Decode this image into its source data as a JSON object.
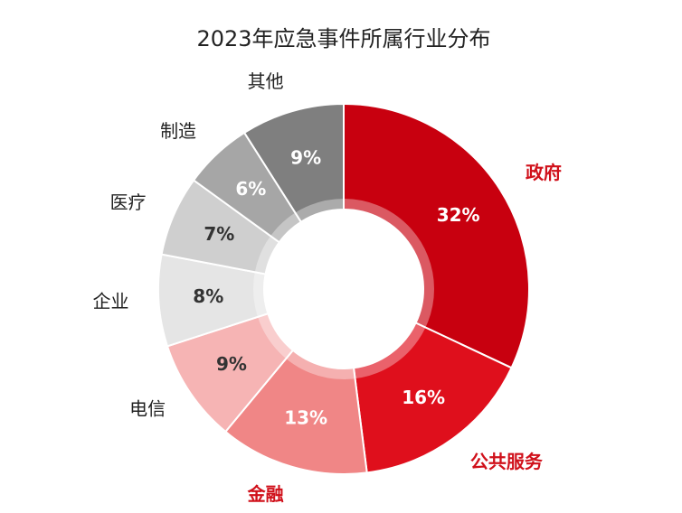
{
  "chart_data": {
    "type": "donut",
    "title": "2023年应急事件所属行业分布",
    "categories": [
      "政府",
      "公共服务",
      "金融",
      "电信",
      "企业",
      "医疗",
      "制造",
      "其他"
    ],
    "values": [
      32,
      16,
      13,
      9,
      8,
      7,
      6,
      9
    ],
    "value_labels": [
      "32%",
      "16%",
      "13%",
      "9%",
      "8%",
      "7%",
      "6%",
      "9%"
    ],
    "colors": [
      "#c8000f",
      "#df0f1c",
      "#f08686",
      "#f6b4b4",
      "#e5e5e5",
      "#cfcfcf",
      "#a6a6a6",
      "#7f7f7f"
    ],
    "label_colors": [
      "#d0101a",
      "#d0101a",
      "#d0101a",
      "#222222",
      "#222222",
      "#222222",
      "#222222",
      "#222222"
    ],
    "value_label_colors": [
      "#ffffff",
      "#ffffff",
      "#ffffff",
      "#333333",
      "#333333",
      "#333333",
      "#ffffff",
      "#ffffff"
    ]
  }
}
